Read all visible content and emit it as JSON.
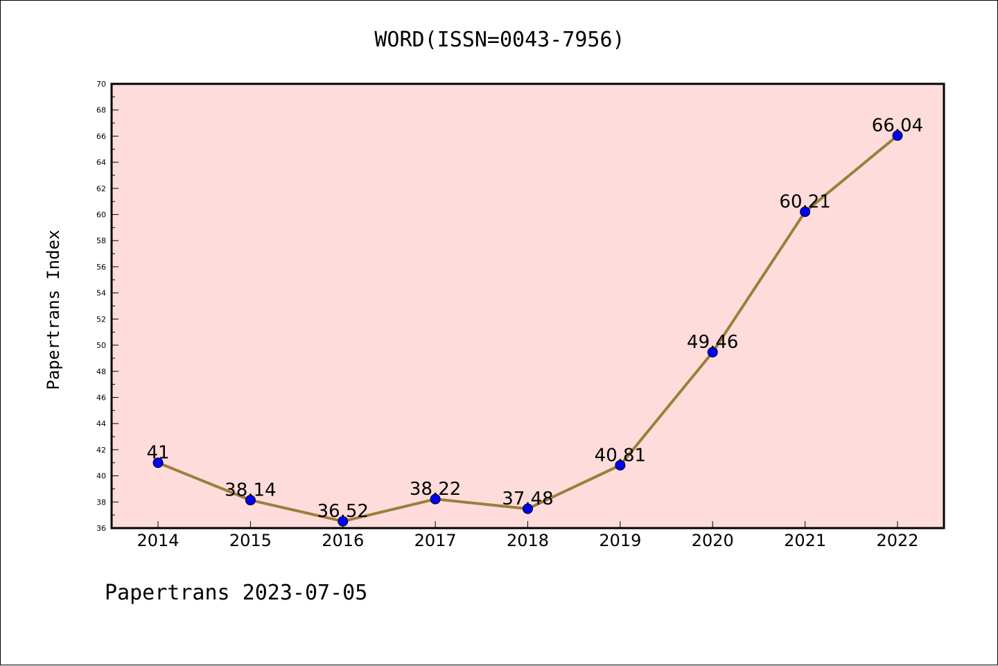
{
  "chart_data": {
    "type": "line",
    "title": "WORD(ISSN=0043-7956)",
    "ylabel": "Papertrans Index",
    "xlabel": "",
    "categories": [
      "2014",
      "2015",
      "2016",
      "2017",
      "2018",
      "2019",
      "2020",
      "2021",
      "2022"
    ],
    "series": [
      {
        "values": [
          41,
          38.14,
          36.52,
          38.22,
          37.48,
          40.81,
          49.46,
          60.21,
          66.04
        ],
        "data_labels": [
          "41",
          "38.14",
          "36.52",
          "38.22",
          "37.48",
          "40.81",
          "49.46",
          "60.21",
          "66.04"
        ]
      }
    ],
    "ylim": [
      36,
      70
    ],
    "yticks": [
      "36",
      "38",
      "40",
      "42",
      "44",
      "46",
      "48",
      "50",
      "52",
      "54",
      "56",
      "58",
      "60",
      "62",
      "64",
      "66",
      "68",
      "70"
    ],
    "grid": false,
    "legend": "none"
  },
  "footer": {
    "text": "Papertrans 2023-07-05"
  },
  "colors": {
    "plot_background": "#fddcdb",
    "line": "#9a7f3a",
    "marker": "#0000ff",
    "axes": "#000000"
  }
}
